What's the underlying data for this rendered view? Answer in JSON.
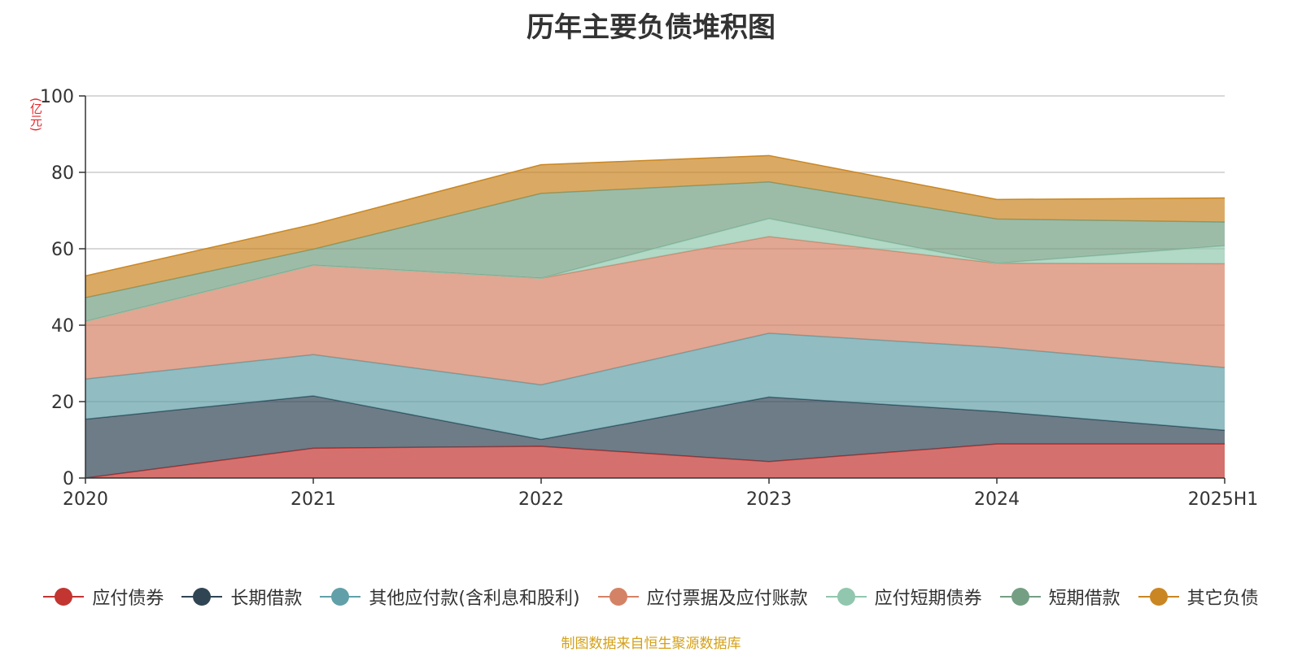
{
  "chart_data": {
    "type": "area",
    "stacked": true,
    "title": "历年主要负债堆积图",
    "ylabel": "(亿元)",
    "x": [
      "2020",
      "2021",
      "2022",
      "2023",
      "2024",
      "2025H1"
    ],
    "ylim": [
      0,
      100
    ],
    "yticks": [
      "0",
      "20",
      "40",
      "60",
      "80",
      "100"
    ],
    "grid": true,
    "legend_position": "bottom",
    "series": [
      {
        "name": "应付债券",
        "color": "#c23531",
        "values": [
          0,
          7.8,
          8.3,
          4.3,
          8.9,
          8.9
        ]
      },
      {
        "name": "长期借款",
        "color": "#2f4554",
        "values": [
          15.4,
          13.7,
          1.8,
          16.9,
          8.5,
          3.6
        ]
      },
      {
        "name": "其他应付款(含利息和股利)",
        "color": "#61a0a8",
        "values": [
          10.5,
          10.8,
          14.3,
          16.7,
          16.8,
          16.4
        ]
      },
      {
        "name": "应付票据及应付账款",
        "color": "#d48265",
        "values": [
          15.1,
          23.4,
          27.9,
          25.3,
          22.0,
          27.2
        ]
      },
      {
        "name": "应付短期债券",
        "color": "#91c7ae",
        "values": [
          0,
          0,
          0,
          4.7,
          0,
          4.7
        ]
      },
      {
        "name": "短期借款",
        "color": "#749f83",
        "values": [
          6.2,
          4.2,
          22.2,
          9.6,
          11.6,
          6.2
        ]
      },
      {
        "name": "其它负债",
        "color": "#ca8622",
        "values": [
          5.7,
          6.5,
          7.5,
          6.9,
          5.1,
          6.3
        ]
      }
    ]
  },
  "source_note": "制图数据来自恒生聚源数据库"
}
